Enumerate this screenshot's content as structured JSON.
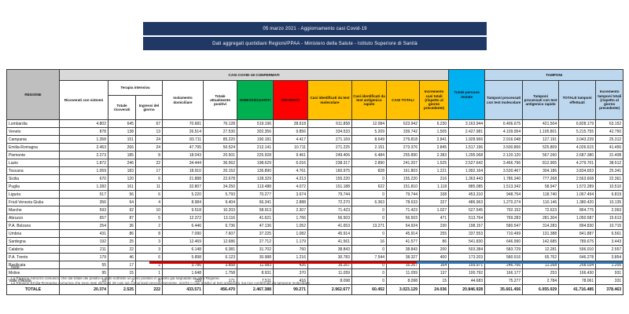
{
  "header": {
    "line1": "05 marzo 2021 - Aggiornamento casi Covid-19",
    "line2": "Dati aggregati quotidiani Regioni/PPAA - Ministero della Salute - Istituto Superiore di Sanità"
  },
  "colors": {
    "bar_navy": "#1f3864",
    "green_guariti": "#00b050",
    "red_deceduti": "#ff0000",
    "yellow_casi": "#ffc000",
    "cyan_testate": "#00b0f0",
    "lightblue_tamponi": "#bdd7ee",
    "gray_header": "#bfbfbf"
  },
  "table": {
    "corner": "REGIONE",
    "groups": {
      "confermati": "CASI COVID-19 CONFERMATI",
      "terapia": "Terapia intensiva",
      "tamponi": "TAMPONI"
    },
    "columns": [
      "Ricoverati con sintomi",
      "Totale ricoverati",
      "Ingressi del giorno",
      "Isolamento domiciliare",
      "Totale attualmente positivi",
      "DIMESSI/GUARITI",
      "DECEDUTI",
      "Casi identificati da test molecolare",
      "Casi identificati da test antigenico rapido",
      "CASI TOTALI",
      "Incremento casi totali (rispetto al giorno precedente)",
      "Totale persone testate",
      "Tamponi processati con test molecolare",
      "Tamponi processati con test antigenico rapido",
      "TOTALE tamponi effettuati",
      "Incremento tamponi totali (rispetto al giorno precedente)"
    ],
    "rows": [
      [
        "Lombardia",
        "4.802",
        "645",
        "67",
        "70.681",
        "76.128",
        "519.196",
        "28.618",
        "611.858",
        "12.084",
        "623.942",
        "6.230",
        "3.163.944",
        "6.406.675",
        "421.504",
        "6.828.179",
        "63.152"
      ],
      [
        "Veneto",
        "878",
        "138",
        "13",
        "26.514",
        "27.530",
        "302.356",
        "9.856",
        "334.533",
        "5.209",
        "339.742",
        "1.505",
        "2.427.981",
        "4.109.954",
        "1.105.801",
        "5.215.755",
        "42.750"
      ],
      [
        "Campania",
        "1.358",
        "151",
        "24",
        "83.711",
        "85.220",
        "190.181",
        "4.417",
        "271.169",
        "8.649",
        "279.818",
        "2.841",
        "1.928.966",
        "2.916.048",
        "127.191",
        "3.043.239",
        "25.312"
      ],
      [
        "Emilia-Romagna",
        "2.463",
        "266",
        "24",
        "47.795",
        "50.524",
        "212.141",
        "10.711",
        "271.225",
        "2.151",
        "273.376",
        "2.845",
        "1.517.196",
        "3.500.806",
        "525.809",
        "4.026.615",
        "41.456"
      ],
      [
        "Piemonte",
        "2.273",
        "185",
        "8",
        "18.043",
        "20.501",
        "225.928",
        "9.461",
        "249.406",
        "6.484",
        "255.890",
        "2.383",
        "1.295.068",
        "2.120.120",
        "567.260",
        "2.687.380",
        "31.408"
      ],
      [
        "Lazio",
        "1.872",
        "246",
        "22",
        "34.444",
        "36.562",
        "198.629",
        "6.016",
        "238.317",
        "2.890",
        "241.207",
        "1.525",
        "2.527.642",
        "3.466.796",
        "812.905",
        "4.279.701",
        "38.512"
      ],
      [
        "Toscana",
        "1.059",
        "183",
        "17",
        "18.910",
        "20.152",
        "136.890",
        "4.761",
        "160.975",
        "828",
        "161.803",
        "1.221",
        "1.992.164",
        "3.530.467",
        "304.186",
        "3.834.653",
        "25.341"
      ],
      [
        "Sicilia",
        "670",
        "120",
        "6",
        "21.888",
        "22.678",
        "128.329",
        "4.213",
        "155.220",
        "0",
        "155.220",
        "216",
        "1.363.443",
        "1.786.340",
        "777.268",
        "2.563.608",
        "22.361"
      ],
      [
        "Puglia",
        "1.282",
        "161",
        "11",
        "32.807",
        "34.250",
        "113.488",
        "4.072",
        "151.188",
        "622",
        "151.810",
        "1.118",
        "885.085",
        "1.513.342",
        "58.947",
        "1.572.289",
        "10.510"
      ],
      [
        "Liguria",
        "517",
        "56",
        "6",
        "5.220",
        "5.793",
        "70.277",
        "3.674",
        "79.744",
        "0",
        "79.744",
        "338",
        "453.310",
        "948.754",
        "118.740",
        "1.067.494",
        "6.819"
      ],
      [
        "Friuli Venezia Giulia",
        "356",
        "64",
        "4",
        "8.984",
        "9.404",
        "66.341",
        "2.888",
        "72.270",
        "6.363",
        "78.633",
        "327",
        "486.963",
        "1.270.274",
        "110.146",
        "1.380.420",
        "10.135"
      ],
      [
        "Marche",
        "593",
        "92",
        "10",
        "9.518",
        "10.203",
        "58.913",
        "2.307",
        "71.423",
        "0",
        "71.423",
        "1.027",
        "527.545",
        "792.152",
        "72.623",
        "864.775",
        "2.063"
      ],
      [
        "Abruzzo",
        "657",
        "87",
        "5",
        "12.372",
        "13.116",
        "41.621",
        "1.766",
        "56.503",
        "0",
        "56.503",
        "471",
        "513.764",
        "769.283",
        "281.304",
        "1.050.587",
        "15.613"
      ],
      [
        "P.A. Bolzano",
        "254",
        "36",
        "2",
        "6.446",
        "6.736",
        "47.136",
        "1.052",
        "41.653",
        "13.271",
        "54.924",
        "230",
        "198.157",
        "580.547",
        "314.283",
        "894.830",
        "10.715"
      ],
      [
        "Umbria",
        "431",
        "86",
        "8",
        "7.090",
        "7.607",
        "37.225",
        "1.082",
        "45.914",
        "0",
        "45.914",
        "255",
        "337.553",
        "710.499",
        "131.388",
        "841.887",
        "6.561"
      ],
      [
        "Sardegna",
        "192",
        "25",
        "3",
        "12.469",
        "12.686",
        "27.712",
        "1.179",
        "41.561",
        "16",
        "41.577",
        "86",
        "541.830",
        "646.990",
        "142.685",
        "789.675",
        "3.443"
      ],
      [
        "Calabria",
        "211",
        "22",
        "3",
        "6.148",
        "6.381",
        "31.702",
        "760",
        "38.843",
        "0",
        "38.843",
        "200",
        "503.384",
        "583.729",
        "12.281",
        "596.010",
        "2.557"
      ],
      [
        "P.A. Trento",
        "179",
        "46",
        "6",
        "5.898",
        "6.123",
        "30.988",
        "1.216",
        "30.783",
        "7.544",
        "38.327",
        "400",
        "173.203",
        "580.516",
        "65.762",
        "646.278",
        "3.854"
      ],
      [
        "Basilicata",
        "55",
        "17",
        "2",
        "3.786",
        "3.858",
        "11.983",
        "426",
        "16.267",
        "0",
        "16.267",
        "164",
        "159.971",
        "246.766",
        "11.268",
        "258.034",
        "1.205"
      ],
      [
        "Molise",
        "95",
        "15",
        "1",
        "1.648",
        "1.758",
        "8.931",
        "370",
        "11.059",
        "0",
        "11.059",
        "137",
        "100.792",
        "166.177",
        "253",
        "166.430",
        "931"
      ],
      [
        "Valle d'Aosta",
        "10",
        "2",
        "0",
        "159",
        "171",
        "7.511",
        "416",
        "8.098",
        "0",
        "8.098",
        "15",
        "44.683",
        "75.277",
        "2.784",
        "78.061",
        "331"
      ]
    ],
    "totale": [
      "TOTALE",
      "20.374",
      "2.525",
      "222",
      "433.571",
      "456.470",
      "2.467.388",
      "99.271",
      "2.962.677",
      "60.452",
      "3.023.129",
      "24.036",
      "20.846.928",
      "35.661.456",
      "6.055.029",
      "41.716.485",
      "378.463"
    ]
  },
  "notes": {
    "title": "Note:",
    "lines": [
      "La Regione Abruzzo comunica che dal totale dei positivi è stato sottratto un caso positivo in quanto già segnalato da altra Regione.",
      "La Regione Emilia-Romagna comunica che sono stati eliminati 28 casi già comunicati precedentemente, poiché o casi positivi al test antigenico ma non confermati da tampone molecolare."
    ]
  }
}
